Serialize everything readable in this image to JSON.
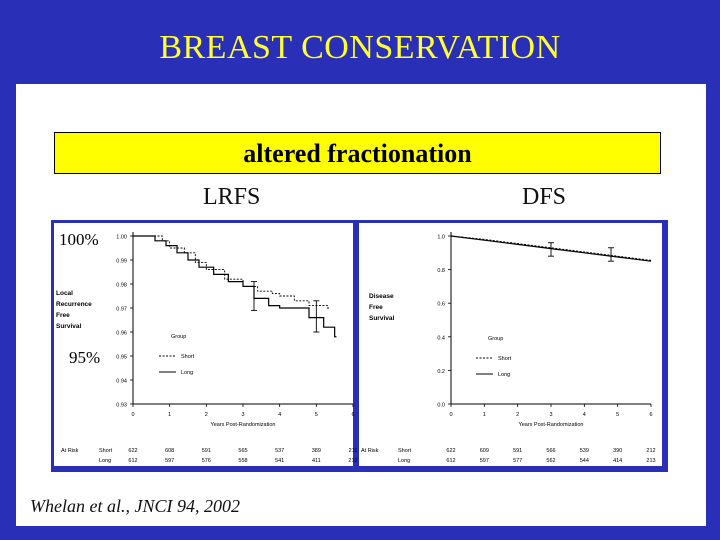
{
  "title": "BREAST CONSERVATION",
  "subtitle": "altered fractionation",
  "panel_titles": {
    "left": "LRFS",
    "right": "DFS"
  },
  "overlay_labels": {
    "top": "100%",
    "bottom": "95%"
  },
  "citation": "Whelan et al., JNCI 94, 2002",
  "colors": {
    "slide_bg": "#2a2fb8",
    "title": "#ffff33",
    "highlight": "#ffff00"
  },
  "chart_data": [
    {
      "type": "line",
      "title": "LRFS",
      "ylabel_lines": [
        "Local",
        "Recurrence",
        "Free",
        "Survival"
      ],
      "xlabel": "Years Post-Randomization",
      "xlim": [
        0,
        6
      ],
      "ylim": [
        0.93,
        1.0
      ],
      "xticks": [
        "0",
        "1",
        "2",
        "3",
        "4",
        "5",
        "6"
      ],
      "yticks": [
        "1.00",
        "0.99",
        "0.98",
        "0.97",
        "0.96",
        "0.95",
        "0.94",
        "0.93"
      ],
      "legend_title": "Group",
      "series": [
        {
          "name": "Short",
          "style": "dashed",
          "x": [
            0,
            0.8,
            1.0,
            1.4,
            1.7,
            2.0,
            2.5,
            3.0,
            3.4,
            3.8,
            4.0,
            4.4,
            4.8,
            5.3
          ],
          "y": [
            1.0,
            0.998,
            0.995,
            0.993,
            0.989,
            0.986,
            0.982,
            0.979,
            0.977,
            0.976,
            0.975,
            0.973,
            0.971,
            0.97
          ]
        },
        {
          "name": "Long",
          "style": "solid",
          "x": [
            0,
            0.6,
            0.9,
            1.2,
            1.5,
            1.8,
            2.2,
            2.6,
            3.0,
            3.3,
            3.7,
            4.0,
            4.4,
            4.8,
            5.2,
            5.5
          ],
          "y": [
            1.0,
            0.998,
            0.996,
            0.993,
            0.99,
            0.987,
            0.984,
            0.981,
            0.979,
            0.974,
            0.971,
            0.97,
            0.97,
            0.966,
            0.962,
            0.958
          ]
        }
      ],
      "error_bars": [
        {
          "x": 3.3,
          "low": 0.969,
          "high": 0.981
        },
        {
          "x": 5.0,
          "low": 0.96,
          "high": 0.973
        }
      ],
      "at_risk": {
        "label": "At Risk",
        "rows": [
          {
            "name": "Short",
            "values": [
              "622",
              "608",
              "591",
              "565",
              "537",
              "389",
              "211"
            ]
          },
          {
            "name": "Long",
            "values": [
              "612",
              "597",
              "576",
              "558",
              "541",
              "411",
              "212"
            ]
          }
        ]
      }
    },
    {
      "type": "line",
      "title": "DFS",
      "ylabel_lines": [
        "Disease",
        "Free",
        "Survival"
      ],
      "xlabel": "Years Post-Randomization",
      "xlim": [
        0,
        6
      ],
      "ylim": [
        0.0,
        1.0
      ],
      "xticks": [
        "0",
        "1",
        "2",
        "3",
        "4",
        "5",
        "6"
      ],
      "yticks": [
        "1.0",
        "0.8",
        "0.6",
        "0.4",
        "0.2",
        "0.0"
      ],
      "legend_title": "Group",
      "series": [
        {
          "name": "Short",
          "style": "dashed",
          "x": [
            0,
            1,
            2,
            3,
            4,
            5,
            6
          ],
          "y": [
            1.0,
            0.98,
            0.955,
            0.93,
            0.905,
            0.88,
            0.855
          ]
        },
        {
          "name": "Long",
          "style": "solid",
          "x": [
            0,
            1,
            2,
            3,
            4,
            5,
            6
          ],
          "y": [
            1.0,
            0.975,
            0.95,
            0.925,
            0.9,
            0.875,
            0.85
          ]
        }
      ],
      "error_bars": [
        {
          "x": 3.0,
          "low": 0.88,
          "high": 0.96
        },
        {
          "x": 4.8,
          "low": 0.85,
          "high": 0.93
        }
      ],
      "at_risk": {
        "label": "At Risk",
        "rows": [
          {
            "name": "Short",
            "values": [
              "622",
              "609",
              "591",
              "566",
              "539",
              "390",
              "212"
            ]
          },
          {
            "name": "Long",
            "values": [
              "612",
              "597",
              "577",
              "562",
              "544",
              "414",
              "213"
            ]
          }
        ]
      }
    }
  ]
}
